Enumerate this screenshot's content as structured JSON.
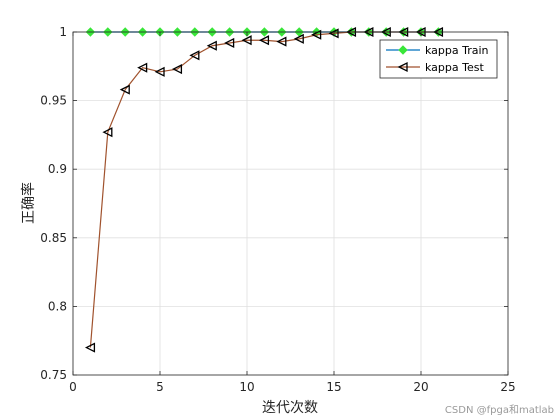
{
  "chart_data": {
    "type": "line",
    "xlabel": "迭代次数",
    "ylabel": "正确率",
    "xlim": [
      0,
      25
    ],
    "ylim": [
      0.75,
      1.0
    ],
    "xticks": [
      0,
      5,
      10,
      15,
      20,
      25
    ],
    "yticks": [
      0.75,
      0.8,
      0.85,
      0.9,
      0.95,
      1.0
    ],
    "xtick_labels": [
      "0",
      "5",
      "10",
      "15",
      "20",
      "25"
    ],
    "ytick_labels": [
      "0.75",
      "0.8",
      "0.85",
      "0.9",
      "0.95",
      "1"
    ],
    "grid": true,
    "legend_position": "top-right",
    "x": [
      1,
      2,
      3,
      4,
      5,
      6,
      7,
      8,
      9,
      10,
      11,
      12,
      13,
      14,
      15,
      16,
      17,
      18,
      19,
      20,
      21
    ],
    "series": [
      {
        "name": "kappa Train",
        "color": "#0072BD",
        "marker": "diamond",
        "marker_color": "#39e639",
        "values": [
          1,
          1,
          1,
          1,
          1,
          1,
          1,
          1,
          1,
          1,
          1,
          1,
          1,
          1,
          1,
          1,
          1,
          1,
          1,
          1,
          1
        ]
      },
      {
        "name": "kappa Test",
        "color": "#A0522D",
        "marker": "triangle-left",
        "marker_color": "#000000",
        "values": [
          0.77,
          0.927,
          0.958,
          0.974,
          0.971,
          0.973,
          0.983,
          0.99,
          0.992,
          0.994,
          0.994,
          0.993,
          0.995,
          0.998,
          0.999,
          1,
          1,
          1,
          1,
          1,
          1
        ]
      }
    ]
  },
  "watermark": "CSDN @fpga和matlab"
}
